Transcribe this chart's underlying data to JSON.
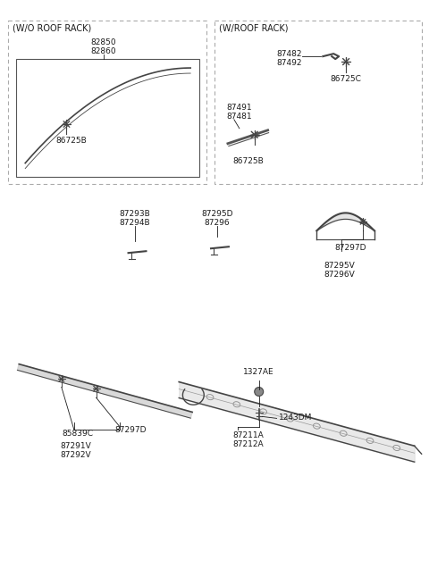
{
  "bg_color": "#ffffff",
  "tc": "#1a1a1a",
  "pc": "#444444",
  "fs": 6.5,
  "fs_label": 7.0,
  "s1_label": "(W/O ROOF RACK)",
  "s2_label": "(W/ROOF RACK)",
  "s1_parts": [
    "82850",
    "82860"
  ],
  "s1_fast": "86725B",
  "s2_top_parts": [
    "87482",
    "87492"
  ],
  "s2_top_fast": "86725C",
  "s2_bot_parts": [
    "87491",
    "87481"
  ],
  "s2_bot_fast": "86725B",
  "mid_left": [
    "87293B",
    "87294B"
  ],
  "mid_ctr": [
    "87295D",
    "87296"
  ],
  "mid_right_top": "87297D",
  "mid_right_bot": [
    "87295V",
    "87296V"
  ],
  "bot_l1": "85839C",
  "bot_l2": "87297D",
  "bot_l3": [
    "87291V",
    "87292V"
  ],
  "bot_c1": "1327AE",
  "bot_c2": "1243DM",
  "bot_c3": [
    "87211A",
    "87212A"
  ]
}
